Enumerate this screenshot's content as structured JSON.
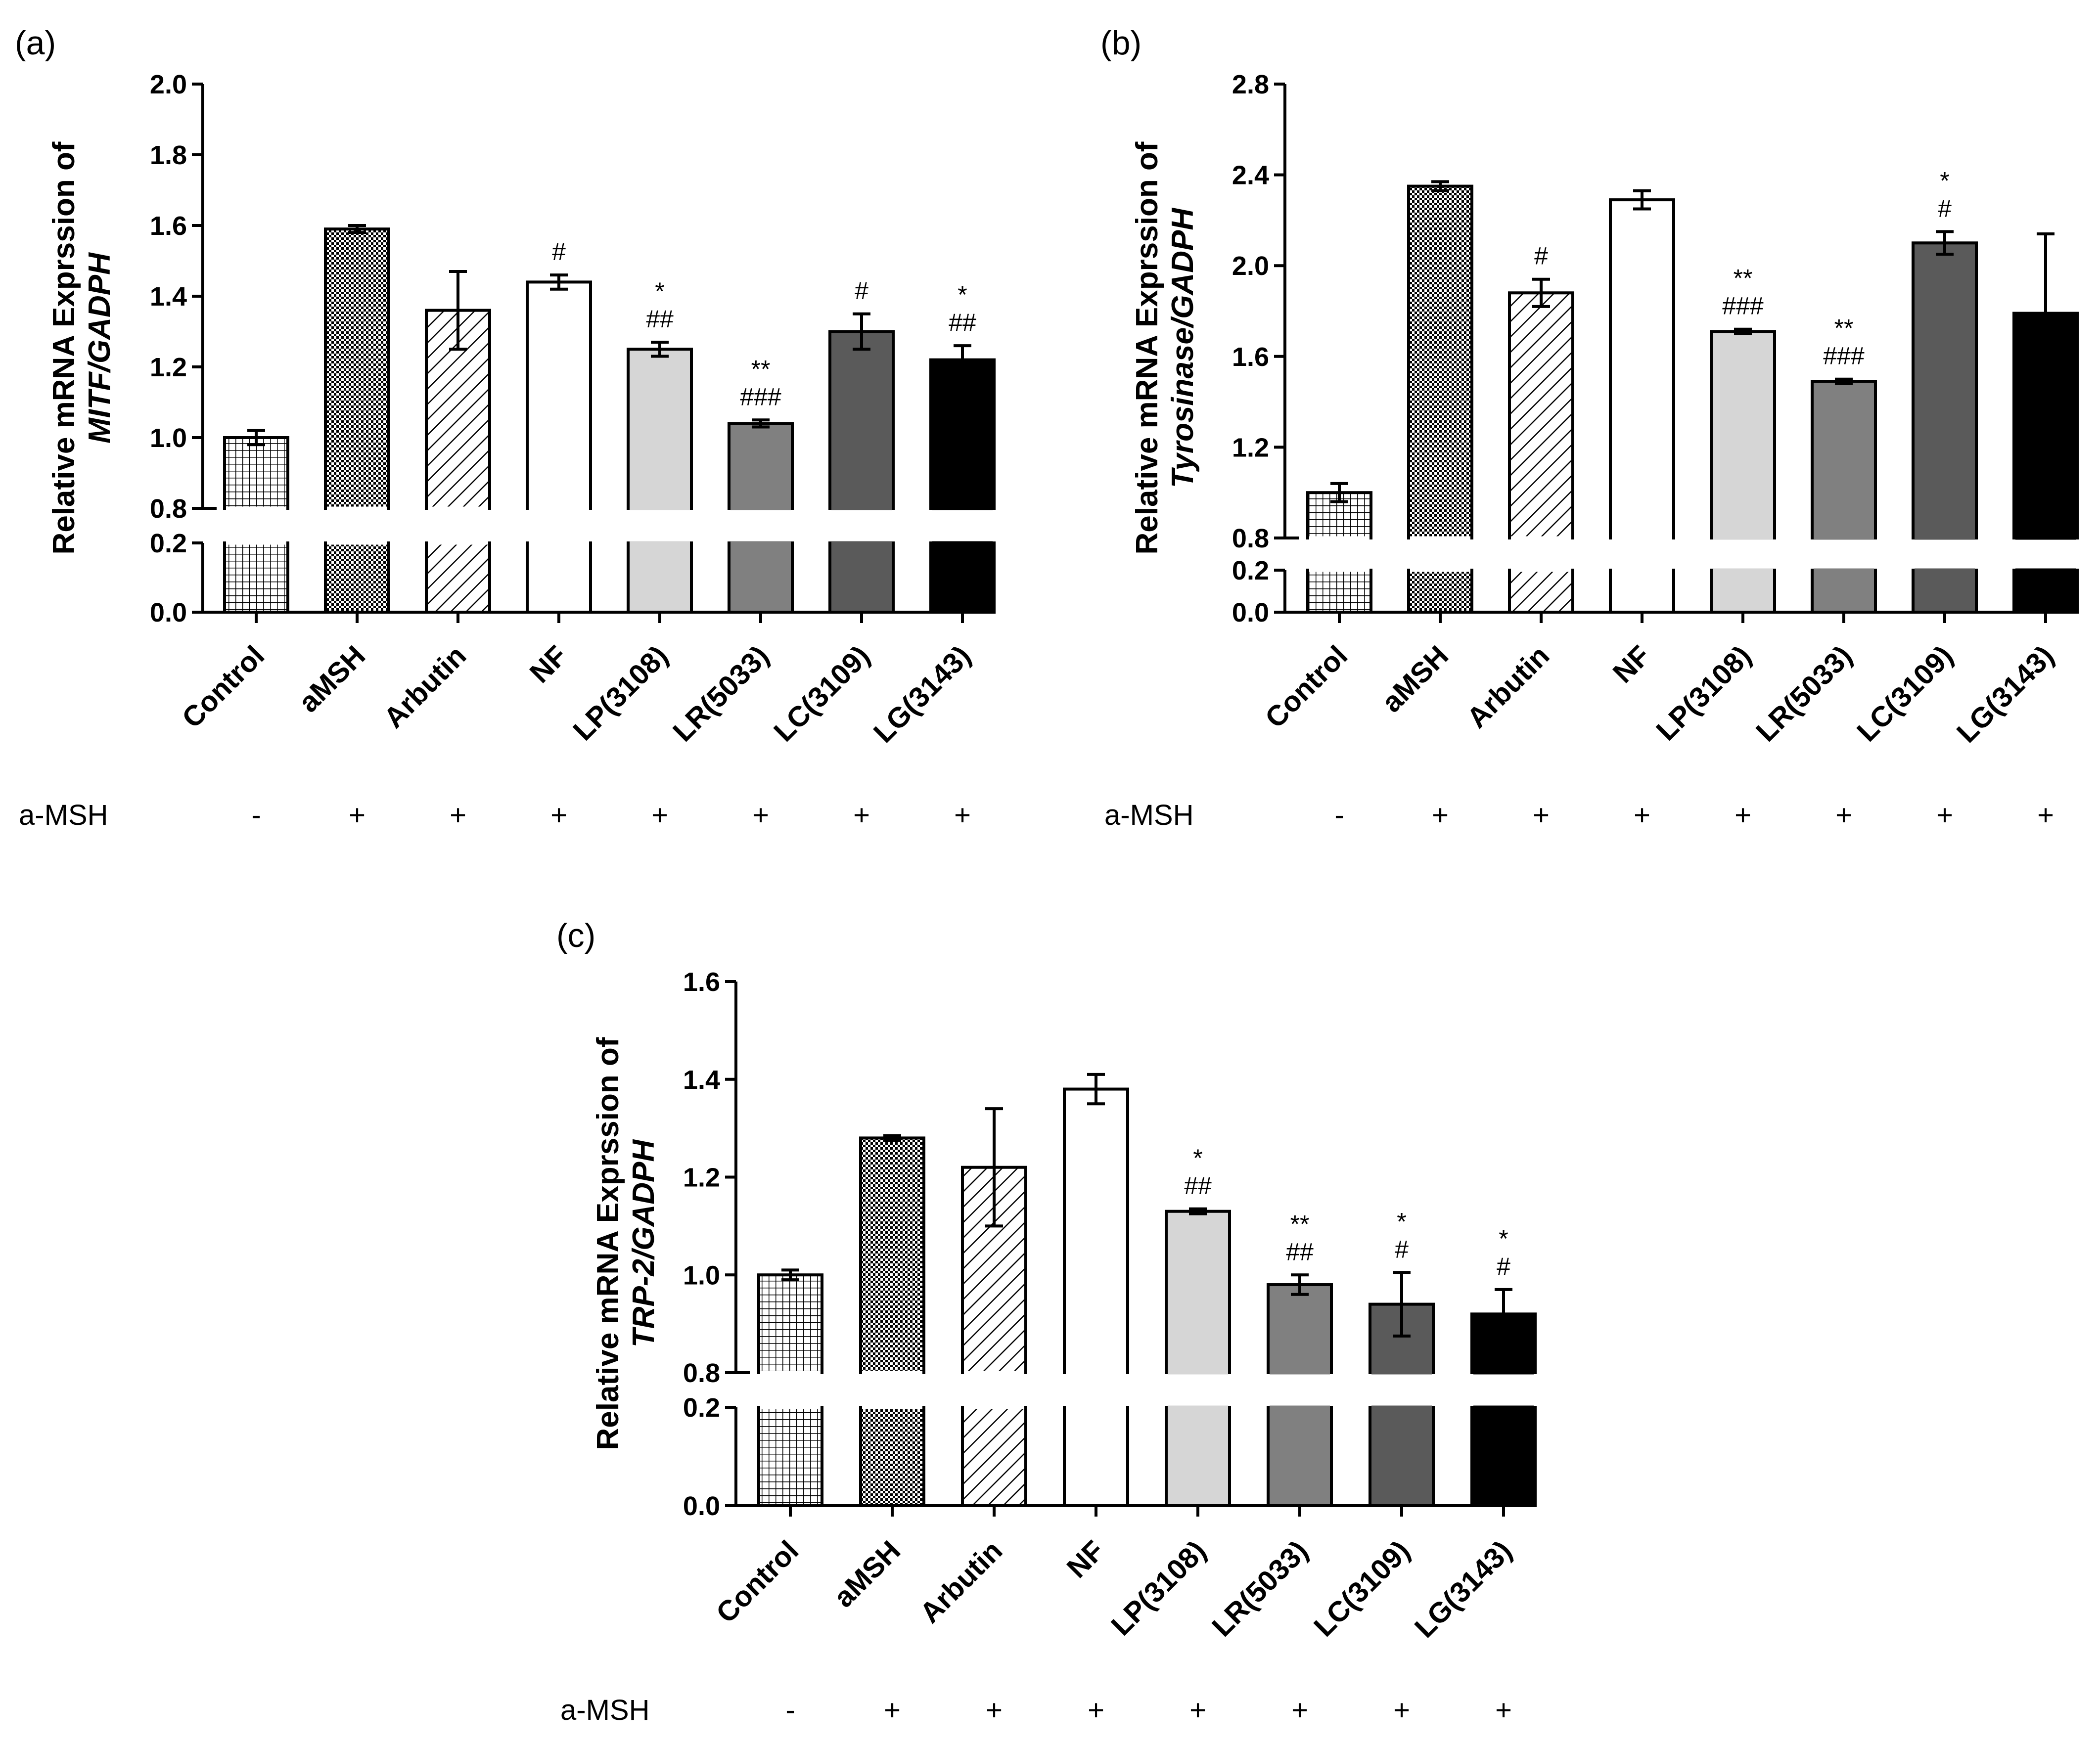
{
  "chart_data": [
    {
      "type": "bar",
      "panel_label": "(a)",
      "ylabel_line1": "Relative mRNA Exprssion of",
      "ylabel_line2": "MITF/GADPH",
      "categories": [
        "Control",
        "aMSH",
        "Arbutin",
        "NF",
        "LP(3108)",
        "LR(5033)",
        "LC(3109)",
        "LG(3143)"
      ],
      "values": [
        1.0,
        1.59,
        1.36,
        1.44,
        1.25,
        1.04,
        1.3,
        1.22
      ],
      "errors": [
        0.02,
        0.01,
        0.11,
        0.02,
        0.02,
        0.01,
        0.05,
        0.04
      ],
      "annotations": [
        [],
        [],
        [],
        [
          "#"
        ],
        [
          "*",
          "##"
        ],
        [
          "**",
          "###"
        ],
        [
          "#"
        ],
        [
          "*",
          "##"
        ]
      ],
      "ylim_lower": [
        0,
        0.2
      ],
      "ylim_upper": [
        0.8,
        2.0
      ],
      "yticks_lower": [
        "0.0",
        "0.2"
      ],
      "yticks_upper": [
        "0.8",
        "1.0",
        "1.2",
        "1.4",
        "1.6",
        "1.8",
        "2.0"
      ],
      "axis_break": true,
      "treatment_label": "a-MSH",
      "treatment_signs": [
        "-",
        "+",
        "+",
        "+",
        "+",
        "+",
        "+",
        "+"
      ]
    },
    {
      "type": "bar",
      "panel_label": "(b)",
      "ylabel_line1": "Relative mRNA Exprssion of",
      "ylabel_line2": "Tyrosinase/GADPH",
      "categories": [
        "Control",
        "aMSH",
        "Arbutin",
        "NF",
        "LP(3108)",
        "LR(5033)",
        "LC(3109)",
        "LG(3143)"
      ],
      "values": [
        1.0,
        2.35,
        1.88,
        2.29,
        1.71,
        1.49,
        2.1,
        1.79
      ],
      "errors": [
        0.04,
        0.02,
        0.06,
        0.04,
        0.01,
        0.01,
        0.05,
        0.35
      ],
      "annotations": [
        [],
        [],
        [
          "#"
        ],
        [],
        [
          "**",
          "###"
        ],
        [
          "**",
          "###"
        ],
        [
          "*",
          "#"
        ],
        []
      ],
      "ylim_lower": [
        0,
        0.2
      ],
      "ylim_upper": [
        0.8,
        2.8
      ],
      "yticks_lower": [
        "0.0",
        "0.2"
      ],
      "yticks_upper": [
        "0.8",
        "1.2",
        "1.6",
        "2.0",
        "2.4",
        "2.8"
      ],
      "axis_break": true,
      "treatment_label": "a-MSH",
      "treatment_signs": [
        "-",
        "+",
        "+",
        "+",
        "+",
        "+",
        "+",
        "+"
      ]
    },
    {
      "type": "bar",
      "panel_label": "(c)",
      "ylabel_line1": "Relative mRNA Exprssion of",
      "ylabel_line2": "TRP-2/GADPH",
      "categories": [
        "Control",
        "aMSH",
        "Arbutin",
        "NF",
        "LP(3108)",
        "LR(5033)",
        "LC(3109)",
        "LG(3143)"
      ],
      "values": [
        1.0,
        1.28,
        1.22,
        1.38,
        1.13,
        0.98,
        0.94,
        0.92
      ],
      "errors": [
        0.01,
        0.005,
        0.12,
        0.03,
        0.005,
        0.02,
        0.065,
        0.05
      ],
      "annotations": [
        [],
        [],
        [],
        [],
        [
          "*",
          "##"
        ],
        [
          "**",
          "##"
        ],
        [
          "*",
          "#"
        ],
        [
          "*",
          "#"
        ]
      ],
      "ylim_lower": [
        0,
        0.2
      ],
      "ylim_upper": [
        0.8,
        1.6
      ],
      "yticks_lower": [
        "0.0",
        "0.2"
      ],
      "yticks_upper": [
        "0.8",
        "1.0",
        "1.2",
        "1.4",
        "1.6"
      ],
      "axis_break": true,
      "treatment_label": "a-MSH",
      "treatment_signs": [
        "-",
        "+",
        "+",
        "+",
        "+",
        "+",
        "+",
        "+"
      ]
    }
  ],
  "bar_styles": [
    {
      "fill": "grid",
      "color": "#ffffff"
    },
    {
      "fill": "checker",
      "color": "#ffffff"
    },
    {
      "fill": "diagonal",
      "color": "#ffffff"
    },
    {
      "fill": "solid",
      "color": "#ffffff"
    },
    {
      "fill": "solid",
      "color": "#d6d6d6"
    },
    {
      "fill": "solid",
      "color": "#808080"
    },
    {
      "fill": "solid",
      "color": "#5a5a5a"
    },
    {
      "fill": "solid",
      "color": "#000000"
    }
  ]
}
